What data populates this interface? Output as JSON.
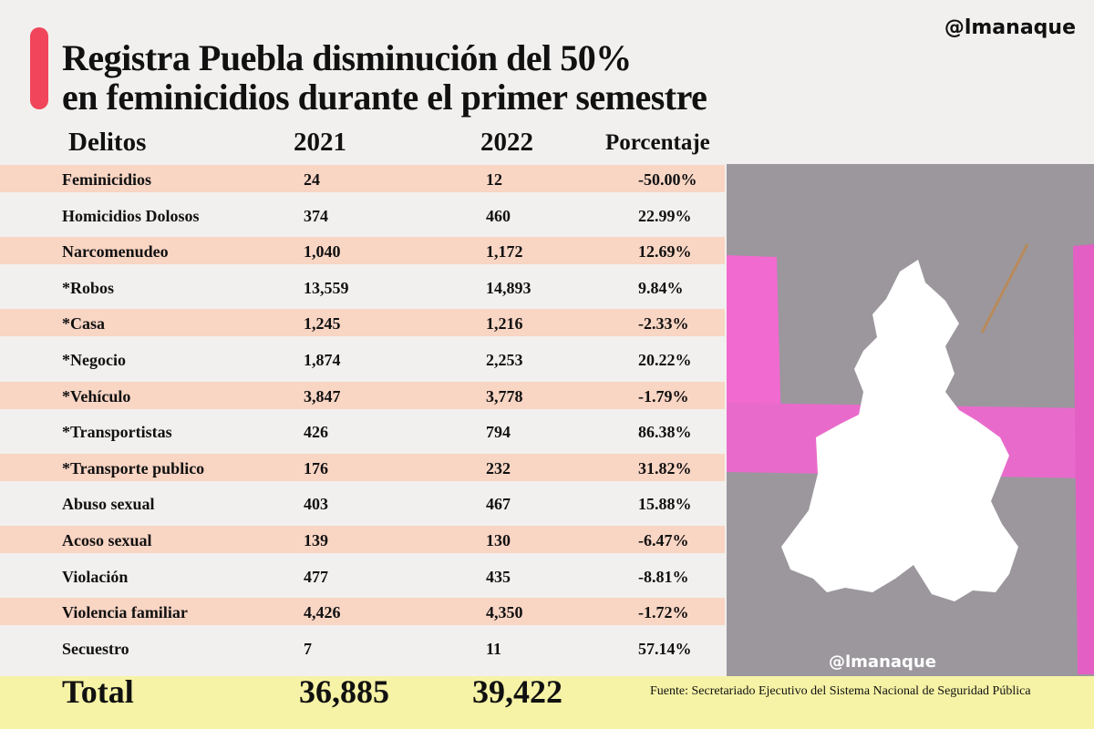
{
  "header": {
    "title_lines": [
      "Registra Puebla disminución del 50%",
      "en feminicidios durante el primer semestre"
    ],
    "brand": "@lmanaque"
  },
  "table": {
    "columns": [
      "Delitos",
      "2021",
      "2022",
      "Porcentaje"
    ],
    "rows": [
      [
        "Feminicidios",
        "24",
        "12",
        "-50.00%"
      ],
      [
        "Homicidios Dolosos",
        "374",
        "460",
        "22.99%"
      ],
      [
        "Narcomenudeo",
        "1,040",
        "1,172",
        "12.69%"
      ],
      [
        "*Robos",
        "13,559",
        "14,893",
        "9.84%"
      ],
      [
        "*Casa",
        "1,245",
        "1,216",
        "-2.33%"
      ],
      [
        "*Negocio",
        "1,874",
        "2,253",
        "20.22%"
      ],
      [
        "*Vehículo",
        "3,847",
        "3,778",
        "-1.79%"
      ],
      [
        "*Transportistas",
        "426",
        "794",
        "86.38%"
      ],
      [
        "*Transporte publico",
        "176",
        "232",
        "31.82%"
      ],
      [
        "Abuso sexual",
        "403",
        "467",
        "15.88%"
      ],
      [
        "Acoso sexual",
        "139",
        "130",
        "-6.47%"
      ],
      [
        "Violación",
        "477",
        "435",
        "-8.81%"
      ],
      [
        "Violencia familiar",
        "4,426",
        "4,350",
        "-1.72%"
      ],
      [
        "Secuestro",
        "7",
        "11",
        "57.14%"
      ]
    ],
    "total": [
      "Total",
      "36,885",
      "39,422"
    ]
  },
  "image": {
    "watermark": "@lmanaque"
  },
  "source": "Fuente:  Secretariado Ejecutivo del Sistema Nacional de Seguridad Pública"
}
